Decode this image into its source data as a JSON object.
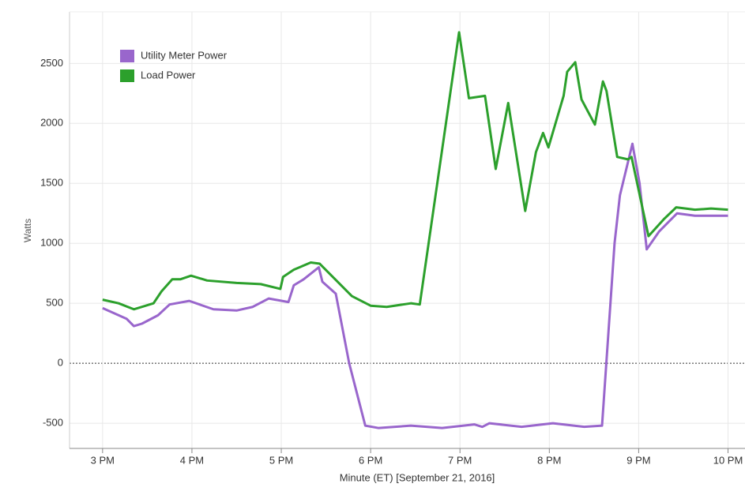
{
  "chart_data": {
    "type": "line",
    "x_label": "Minute (ET) [September 21, 2016]",
    "y_label": "Watts",
    "xlim": [
      14.63,
      22.19
    ],
    "ylim": [
      -710,
      2930
    ],
    "xticks": [
      {
        "value": 15,
        "label": "3 PM"
      },
      {
        "value": 16,
        "label": "4 PM"
      },
      {
        "value": 17,
        "label": "5 PM"
      },
      {
        "value": 18,
        "label": "6 PM"
      },
      {
        "value": 19,
        "label": "7 PM"
      },
      {
        "value": 20,
        "label": "8 PM"
      },
      {
        "value": 21,
        "label": "9 PM"
      },
      {
        "value": 22,
        "label": "10 PM"
      }
    ],
    "yticks": [
      -500,
      0,
      500,
      1000,
      1500,
      2000,
      2500
    ],
    "grid": true,
    "legend": "upper left",
    "series": [
      {
        "name": "Utility Meter Power",
        "color": "#9966cc",
        "x": [
          15.0,
          15.27,
          15.35,
          15.44,
          15.62,
          15.75,
          15.97,
          16.24,
          16.5,
          16.68,
          16.86,
          17.08,
          17.14,
          17.25,
          17.42,
          17.46,
          17.61,
          17.76,
          17.94,
          18.09,
          18.45,
          18.8,
          19.16,
          19.25,
          19.33,
          19.69,
          20.04,
          20.39,
          20.59,
          20.73,
          20.79,
          20.93,
          21.01,
          21.09,
          21.23,
          21.43,
          21.63,
          22.0
        ],
        "values": [
          460,
          370,
          310,
          330,
          400,
          490,
          520,
          450,
          440,
          470,
          540,
          510,
          650,
          700,
          800,
          680,
          580,
          0,
          -520,
          -540,
          -520,
          -540,
          -510,
          -530,
          -500,
          -530,
          -500,
          -530,
          -520,
          1000,
          1400,
          1830,
          1500,
          950,
          1100,
          1250,
          1230,
          1230
        ]
      },
      {
        "name": "Load Power",
        "color": "#2ca02c",
        "x": [
          15.0,
          15.18,
          15.35,
          15.57,
          15.66,
          15.78,
          15.87,
          15.99,
          16.17,
          16.5,
          16.77,
          16.99,
          17.02,
          17.14,
          17.33,
          17.43,
          17.79,
          18.0,
          18.18,
          18.45,
          18.55,
          18.99,
          19.1,
          19.28,
          19.4,
          19.54,
          19.73,
          19.85,
          19.93,
          19.99,
          20.16,
          20.2,
          20.29,
          20.36,
          20.51,
          20.6,
          20.64,
          20.76,
          20.88,
          20.92,
          21.11,
          21.28,
          21.42,
          21.63,
          21.81,
          22.0
        ],
        "values": [
          530,
          500,
          450,
          500,
          600,
          700,
          700,
          730,
          690,
          670,
          660,
          620,
          720,
          780,
          840,
          830,
          560,
          480,
          470,
          500,
          490,
          2760,
          2210,
          2230,
          1620,
          2170,
          1270,
          1760,
          1920,
          1800,
          2230,
          2430,
          2510,
          2200,
          1990,
          2350,
          2270,
          1720,
          1700,
          1720,
          1060,
          1200,
          1300,
          1280,
          1290,
          1280
        ]
      }
    ]
  }
}
